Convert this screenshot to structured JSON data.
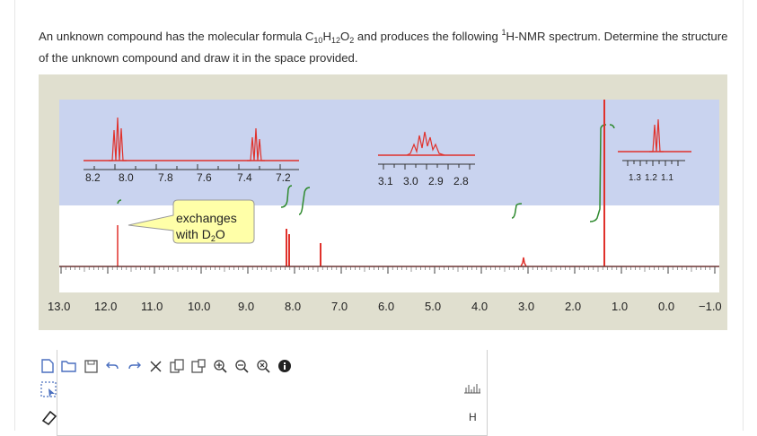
{
  "question": {
    "pre": "An unknown compound has the molecular formula C",
    "c_sub": "10",
    "h": "H",
    "h_sub": "12",
    "o": "O",
    "o_sub": "2",
    "mid": " and produces the following ",
    "sup1": "1",
    "post": "H-NMR spectrum. Determine the structure of the unknown compound and draw it in the space provided."
  },
  "spectrum": {
    "main_axis_labels": [
      "13.0",
      "12.0",
      "11.0",
      "10.0",
      "9.0",
      "8.0",
      "7.0",
      "6.0",
      "5.0",
      "4.0",
      "3.0",
      "2.0",
      "1.0",
      "0.0",
      "−1.0"
    ],
    "inset1_labels": [
      "8.2",
      "8.0",
      "7.8",
      "7.6",
      "7.4",
      "7.2"
    ],
    "inset2_labels": [
      "3.1",
      "3.0",
      "2.9",
      "2.8"
    ],
    "inset3_labels": [
      "1.3",
      "1.2",
      "1.1"
    ],
    "bubble_line1": "exchanges",
    "bubble_line2_pre": "with D",
    "bubble_line2_sub": "2",
    "bubble_line2_post": "O"
  },
  "toolbar": {
    "icons": [
      "new-document-icon",
      "open-folder-icon",
      "save-icon",
      "undo-icon",
      "redo-icon",
      "cut-icon",
      "copy-icon",
      "paste-icon",
      "zoom-in-icon",
      "zoom-out-icon",
      "zoom-reset-icon",
      "info-icon"
    ]
  },
  "tools": {
    "atom_h": "H"
  },
  "colors": {
    "spectrum_bg": "#e0dfcf",
    "trace": "#e0312b",
    "integral": "#2f8a2f",
    "plot_bg": "#ffffff",
    "inset_bg": "#c9d3ef"
  }
}
